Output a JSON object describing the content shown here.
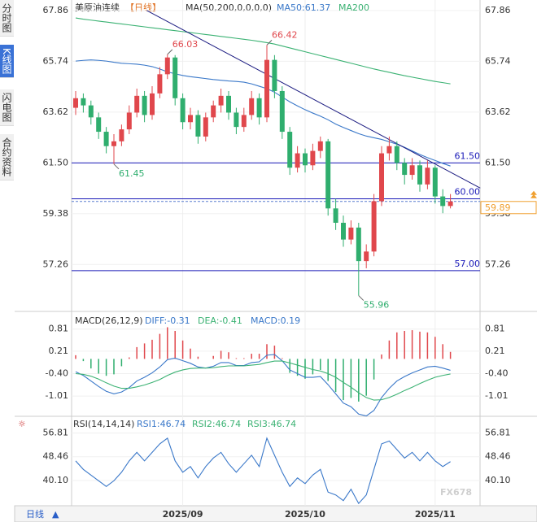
{
  "chart_data": {
    "type": "candlestick",
    "title": "美原油连续",
    "period": "【日线】",
    "ma_label": "MA(50,200,0,0,0,0)",
    "sidebar": [
      "分时图",
      "K线图",
      "闪电图",
      "合约资料"
    ],
    "active_tab": 1,
    "bottom_tab": "日线",
    "watermark": "FX678",
    "up_color": "#e0474c",
    "down_color": "#2fae6e",
    "categories": [
      null,
      null,
      null,
      null,
      null,
      null,
      null,
      null,
      null,
      null,
      null,
      null,
      null,
      null,
      "2025/09",
      null,
      null,
      null,
      null,
      null,
      null,
      null,
      null,
      null,
      null,
      null,
      null,
      null,
      null,
      null,
      "2025/10",
      null,
      null,
      null,
      null,
      null,
      null,
      null,
      null,
      null,
      null,
      null,
      null,
      null,
      null,
      null,
      null,
      "2025/11",
      null,
      null
    ],
    "open": [
      63.8,
      64.2,
      63.9,
      63.4,
      62.8,
      62.2,
      62.4,
      62.9,
      63.6,
      64.3,
      63.5,
      64.4,
      65.2,
      65.9,
      64.2,
      63.2,
      63.5,
      62.6,
      63.4,
      63.9,
      64.3,
      63.6,
      63.0,
      63.5,
      64.2,
      63.4,
      65.8,
      64.5,
      62.8,
      61.3,
      61.9,
      61.4,
      62.0,
      62.4,
      59.6,
      59.0,
      58.3,
      58.8,
      57.4,
      57.8,
      59.9,
      61.9,
      62.2,
      61.5,
      61.0,
      61.4,
      60.6,
      61.3,
      60.1,
      59.7
    ],
    "high": [
      64.5,
      64.4,
      64.1,
      63.6,
      63.0,
      62.7,
      63.1,
      63.9,
      64.6,
      64.5,
      64.7,
      65.5,
      66.03,
      66.0,
      64.4,
      63.8,
      63.7,
      63.6,
      64.1,
      64.6,
      64.5,
      63.8,
      63.8,
      64.5,
      64.4,
      66.42,
      66.0,
      64.7,
      63.0,
      62.2,
      62.1,
      62.3,
      62.6,
      62.5,
      60.0,
      59.3,
      59.1,
      59.0,
      58.1,
      60.2,
      62.2,
      62.6,
      62.4,
      61.7,
      61.7,
      61.6,
      61.6,
      61.4,
      60.4,
      60.2
    ],
    "low": [
      63.5,
      63.6,
      63.1,
      62.5,
      61.9,
      61.45,
      62.2,
      62.7,
      63.4,
      63.2,
      63.3,
      64.2,
      65.0,
      63.9,
      62.9,
      62.9,
      62.3,
      62.4,
      63.2,
      63.6,
      63.3,
      62.7,
      62.8,
      63.3,
      63.1,
      63.2,
      64.2,
      62.5,
      61.0,
      61.1,
      61.1,
      61.2,
      61.7,
      59.3,
      58.7,
      58.0,
      58.1,
      55.96,
      57.1,
      57.6,
      59.7,
      61.6,
      61.2,
      60.6,
      60.8,
      60.3,
      60.4,
      59.8,
      59.4,
      59.6
    ],
    "close": [
      64.2,
      63.9,
      63.4,
      62.8,
      62.2,
      62.4,
      62.9,
      63.6,
      64.3,
      63.5,
      64.4,
      65.2,
      65.9,
      64.2,
      63.2,
      63.5,
      62.6,
      63.4,
      63.9,
      64.3,
      63.6,
      63.0,
      63.5,
      64.2,
      63.4,
      65.8,
      64.5,
      62.8,
      61.3,
      61.9,
      61.4,
      62.0,
      62.4,
      59.6,
      59.0,
      58.3,
      58.8,
      57.4,
      57.8,
      59.9,
      61.9,
      62.2,
      61.5,
      61.0,
      61.4,
      60.6,
      61.3,
      60.1,
      59.7,
      59.89
    ],
    "series": [
      {
        "name": "MA50:61.37",
        "color": "#3a78c9",
        "values": [
          65.75,
          65.78,
          65.8,
          65.78,
          65.75,
          65.7,
          65.66,
          65.64,
          65.62,
          65.58,
          65.52,
          65.42,
          65.3,
          65.22,
          65.15,
          65.1,
          65.06,
          65.02,
          64.98,
          64.95,
          64.92,
          64.9,
          64.87,
          64.8,
          64.7,
          64.6,
          64.45,
          64.25,
          64.05,
          63.88,
          63.72,
          63.58,
          63.45,
          63.3,
          63.12,
          62.98,
          62.85,
          62.72,
          62.62,
          62.55,
          62.48,
          62.38,
          62.28,
          62.15,
          62.0,
          61.85,
          61.72,
          61.6,
          61.48,
          61.37
        ]
      },
      {
        "name": "MA200",
        "color": "#3bb273",
        "values": [
          67.55,
          67.5,
          67.46,
          67.42,
          67.38,
          67.34,
          67.3,
          67.26,
          67.22,
          67.18,
          67.14,
          67.1,
          67.06,
          67.02,
          66.98,
          66.94,
          66.9,
          66.86,
          66.82,
          66.78,
          66.74,
          66.7,
          66.66,
          66.62,
          66.57,
          66.52,
          66.46,
          66.38,
          66.3,
          66.22,
          66.14,
          66.06,
          65.98,
          65.9,
          65.82,
          65.74,
          65.66,
          65.58,
          65.5,
          65.42,
          65.35,
          65.28,
          65.21,
          65.14,
          65.08,
          65.02,
          64.96,
          64.9,
          64.85,
          64.8
        ]
      }
    ],
    "ylim": [
      55.3,
      68.3
    ],
    "yticks": [
      67.86,
      65.74,
      63.62,
      {
        "value": 61.5,
        "label": "61.50"
      },
      59.38,
      57.26
    ],
    "levels": [
      {
        "value": 61.5,
        "label": "61.50"
      },
      {
        "value": 60,
        "label": "60.00"
      },
      {
        "value": 57,
        "label": "57.00"
      }
    ],
    "level_color": "#1a1ab8",
    "last_price": {
      "value": 59.89,
      "label": "59.89"
    },
    "last_color": "#f0a030",
    "trendline": {
      "x": [
        9.3,
        52.9
      ],
      "y": [
        67.86,
        60.45
      ],
      "color": "#1a1a80"
    },
    "annotations": [
      {
        "value": 66.03,
        "label": "66.03",
        "at": 12
      },
      {
        "value": 66.42,
        "label": "66.42",
        "at": 25
      },
      {
        "value": 61.45,
        "label": "61.45",
        "at": 5
      },
      {
        "value": 55.96,
        "label": "55.96",
        "at": 37
      }
    ],
    "macd": {
      "label": "MACD(26,12,9)",
      "ylim": [
        -1.56,
        1.29
      ],
      "yticks": [
        0.81,
        0.21,
        {
          "value": -0.4,
          "label": "-0.40"
        },
        -1.01
      ],
      "series": [
        {
          "name": "DIFF:-0.31",
          "color": "#3a78c9",
          "values": [
            -0.35,
            -0.45,
            -0.6,
            -0.75,
            -0.88,
            -0.95,
            -0.9,
            -0.78,
            -0.6,
            -0.5,
            -0.38,
            -0.22,
            -0.02,
            0.02,
            -0.05,
            -0.12,
            -0.22,
            -0.25,
            -0.2,
            -0.1,
            -0.1,
            -0.18,
            -0.18,
            -0.1,
            -0.08,
            0.1,
            0.12,
            -0.05,
            -0.3,
            -0.4,
            -0.5,
            -0.5,
            -0.48,
            -0.7,
            -0.95,
            -1.2,
            -1.3,
            -1.5,
            -1.55,
            -1.4,
            -1.05,
            -0.8,
            -0.6,
            -0.48,
            -0.38,
            -0.3,
            -0.22,
            -0.2,
            -0.25,
            -0.31
          ]
        },
        {
          "name": "DEA:-0.41",
          "color": "#3bb273",
          "values": [
            -0.4,
            -0.42,
            -0.47,
            -0.55,
            -0.65,
            -0.74,
            -0.8,
            -0.8,
            -0.76,
            -0.71,
            -0.64,
            -0.56,
            -0.45,
            -0.36,
            -0.3,
            -0.26,
            -0.25,
            -0.25,
            -0.24,
            -0.21,
            -0.19,
            -0.19,
            -0.19,
            -0.17,
            -0.15,
            -0.1,
            -0.06,
            -0.06,
            -0.11,
            -0.17,
            -0.23,
            -0.29,
            -0.33,
            -0.4,
            -0.5,
            -0.64,
            -0.77,
            -0.92,
            -1.05,
            -1.12,
            -1.11,
            -1.05,
            -0.96,
            -0.86,
            -0.77,
            -0.67,
            -0.58,
            -0.5,
            -0.45,
            -0.41
          ]
        },
        {
          "name": "MACD:0.19",
          "color": "#3a78c9",
          "values": [
            0.1,
            -0.06,
            -0.26,
            -0.4,
            -0.46,
            -0.42,
            -0.2,
            0.04,
            0.32,
            0.42,
            0.52,
            0.68,
            0.86,
            0.76,
            0.5,
            0.28,
            0.06,
            0,
            0.08,
            0.22,
            0.18,
            0.02,
            0.02,
            0.14,
            0.14,
            0.4,
            0.36,
            0.02,
            -0.38,
            -0.46,
            -0.54,
            -0.42,
            -0.3,
            -0.6,
            -0.9,
            -1.12,
            -1.06,
            -1.16,
            -1.0,
            -0.56,
            0.12,
            0.5,
            0.72,
            0.76,
            0.78,
            0.74,
            0.72,
            0.6,
            0.4,
            0.19
          ]
        }
      ]
    },
    "rsi": {
      "label": "RSI(14,14,14)",
      "ylim": [
        31.2,
        62.7
      ],
      "yticks": [
        56.81,
        48.46,
        {
          "value": 40.1,
          "label": "40.10"
        }
      ],
      "names": [
        "RSI1:46.74",
        "RSI2:46.74",
        "RSI3:46.74"
      ],
      "color": "#3a78c9",
      "values": [
        47,
        44,
        42,
        40,
        38,
        40,
        43,
        47,
        50,
        47,
        50,
        53,
        55,
        47,
        43,
        45,
        41,
        45,
        48,
        50,
        46,
        43,
        46,
        49,
        45,
        55,
        49,
        43,
        38,
        41,
        39,
        42,
        44,
        36,
        35,
        33,
        37,
        32,
        35,
        44,
        53,
        54,
        51,
        48,
        50,
        47,
        50,
        47,
        45,
        46.74
      ]
    }
  }
}
